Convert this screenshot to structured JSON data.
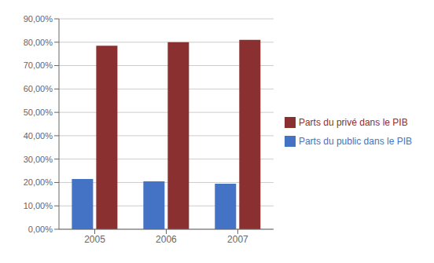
{
  "chart_data": {
    "type": "bar",
    "categories": [
      "2005",
      "2006",
      "2007"
    ],
    "series": [
      {
        "name": "Parts du public dans le PIB",
        "color": "#4472C4",
        "values": [
          0.215,
          0.205,
          0.195
        ]
      },
      {
        "name": "Parts du privé dans le PIB",
        "color": "#8B3030",
        "values": [
          0.785,
          0.8,
          0.81
        ]
      }
    ],
    "ylim": [
      0,
      0.9
    ],
    "yticks": [
      {
        "value": 0.0,
        "label": "0,00%"
      },
      {
        "value": 0.1,
        "label": "10,00%"
      },
      {
        "value": 0.2,
        "label": "20,00%"
      },
      {
        "value": 0.3,
        "label": "30,00%"
      },
      {
        "value": 0.4,
        "label": "40,00%"
      },
      {
        "value": 0.5,
        "label": "50,00%"
      },
      {
        "value": 0.6,
        "label": "60,00%"
      },
      {
        "value": 0.7,
        "label": "70,00%"
      },
      {
        "value": 0.8,
        "label": "80,00%"
      },
      {
        "value": 0.9,
        "label": "90,00%"
      }
    ],
    "grid": true,
    "legend": "right"
  }
}
